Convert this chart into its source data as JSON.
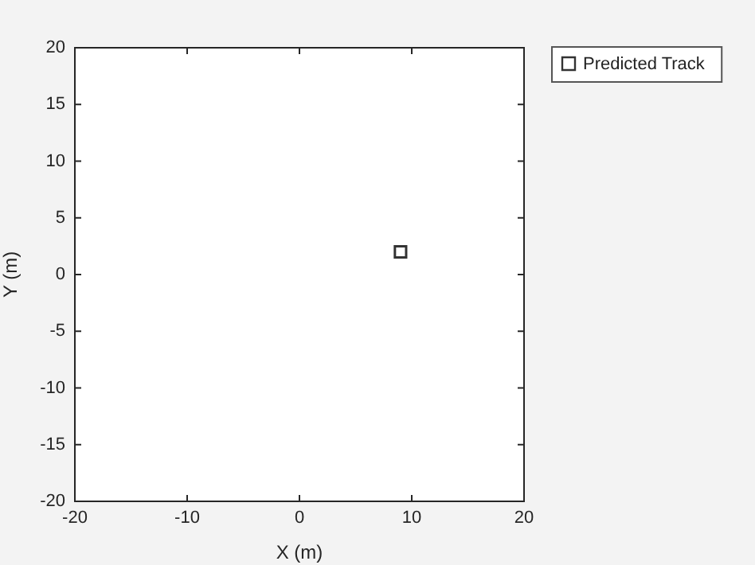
{
  "chart_data": {
    "type": "scatter",
    "xlabel": "X (m)",
    "ylabel": "Y (m)",
    "series": [
      {
        "name": "Predicted Track",
        "color": "#333333",
        "x": [
          9
        ],
        "values": [
          2
        ]
      }
    ],
    "xlim": [
      -20,
      20
    ],
    "xticks": [
      -20,
      -10,
      0,
      10,
      20
    ],
    "ylim": [
      -20,
      20
    ],
    "yticks": [
      -20,
      -15,
      -10,
      -5,
      0,
      5,
      10,
      15,
      20
    ],
    "marker": "square",
    "legend": "top right",
    "grid": false
  }
}
